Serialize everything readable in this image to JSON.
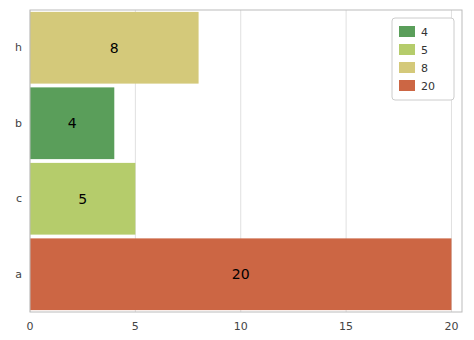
{
  "chart_data": {
    "type": "bar",
    "orientation": "horizontal",
    "categories": [
      "a",
      "c",
      "b",
      "h"
    ],
    "values": [
      20,
      5,
      4,
      8
    ],
    "colors": [
      "#cc6644",
      "#b5cc6b",
      "#5a9e5a",
      "#d4c97a"
    ],
    "data_labels": true,
    "xlim": [
      0,
      20.5
    ],
    "xticks": [
      0,
      5,
      10,
      15,
      20
    ],
    "grid": true,
    "legend": "upper right",
    "legend_entries": [
      {
        "label": "4",
        "color": "#5a9e5a"
      },
      {
        "label": "5",
        "color": "#b5cc6b"
      },
      {
        "label": "8",
        "color": "#d4c97a"
      },
      {
        "label": "20",
        "color": "#cc6644"
      }
    ]
  }
}
